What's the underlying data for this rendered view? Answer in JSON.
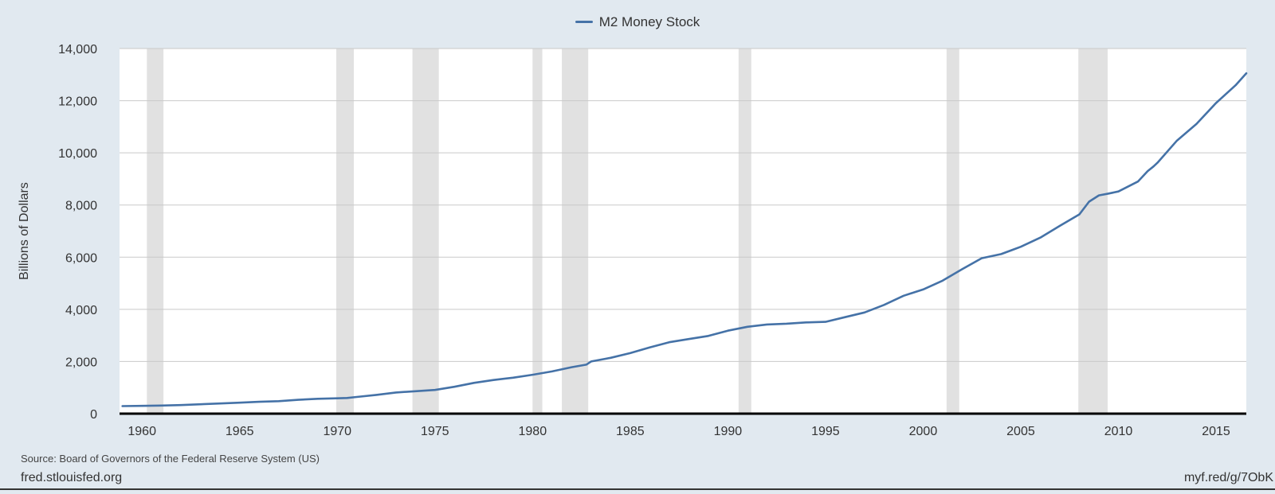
{
  "legend": {
    "label": "M2 Money Stock"
  },
  "footer": {
    "source": "Source: Board of Governors of the Federal Reserve System (US)",
    "site": "fred.stlouisfed.org",
    "shortlink": "myf.red/g/7ObK"
  },
  "colors": {
    "series": "#4572a7",
    "recession": "#e1e1e1",
    "grid": "#c9c9c9",
    "background": "#e1e9f0",
    "plot": "#ffffff"
  },
  "chart_data": {
    "type": "line",
    "title": "",
    "xlabel": "",
    "ylabel": "Billions of Dollars",
    "xlim": [
      1958.85,
      2016.55
    ],
    "ylim": [
      0,
      14000
    ],
    "y_ticks": [
      0,
      2000,
      4000,
      6000,
      8000,
      10000,
      12000,
      14000
    ],
    "y_tick_labels": [
      "0",
      "2,000",
      "4,000",
      "6,000",
      "8,000",
      "10,000",
      "12,000",
      "14,000"
    ],
    "x_ticks": [
      1960,
      1965,
      1970,
      1975,
      1980,
      1985,
      1990,
      1995,
      2000,
      2005,
      2010,
      2015
    ],
    "x_tick_labels": [
      "1960",
      "1965",
      "1970",
      "1975",
      "1980",
      "1985",
      "1990",
      "1995",
      "2000",
      "2005",
      "2010",
      "2015"
    ],
    "grid": true,
    "legend_position": "top-center",
    "recessions": [
      [
        1960.25,
        1961.1
      ],
      [
        1969.95,
        1970.85
      ],
      [
        1973.85,
        1975.2
      ],
      [
        1980.0,
        1980.5
      ],
      [
        1981.5,
        1982.85
      ],
      [
        1990.55,
        1991.2
      ],
      [
        2001.2,
        2001.85
      ],
      [
        2007.95,
        2009.45
      ]
    ],
    "series": [
      {
        "name": "M2 Money Stock",
        "x": [
          1959.0,
          1960.0,
          1961.0,
          1962.0,
          1963.0,
          1964.0,
          1965.0,
          1966.0,
          1967.0,
          1968.0,
          1969.0,
          1970.0,
          1970.5,
          1971.0,
          1972.0,
          1973.0,
          1974.0,
          1975.0,
          1976.0,
          1977.0,
          1978.0,
          1979.0,
          1980.0,
          1981.0,
          1982.0,
          1982.75,
          1983.0,
          1984.0,
          1985.0,
          1986.0,
          1987.0,
          1988.0,
          1989.0,
          1990.0,
          1991.0,
          1992.0,
          1993.0,
          1994.0,
          1995.0,
          1996.0,
          1997.0,
          1998.0,
          1999.0,
          2000.0,
          2001.0,
          2002.0,
          2003.0,
          2004.0,
          2005.0,
          2006.0,
          2007.0,
          2008.0,
          2008.5,
          2009.0,
          2009.5,
          2010.0,
          2011.0,
          2011.5,
          2011.8,
          2012.0,
          2013.0,
          2014.0,
          2015.0,
          2016.0,
          2016.55
        ],
        "values": [
          290,
          300,
          310,
          330,
          360,
          390,
          420,
          455,
          480,
          530,
          570,
          590,
          600,
          640,
          720,
          810,
          860,
          910,
          1030,
          1180,
          1290,
          1380,
          1490,
          1620,
          1780,
          1880,
          2000,
          2140,
          2320,
          2540,
          2740,
          2860,
          2980,
          3180,
          3330,
          3420,
          3450,
          3500,
          3520,
          3700,
          3880,
          4170,
          4520,
          4760,
          5100,
          5540,
          5960,
          6120,
          6400,
          6750,
          7200,
          7640,
          8130,
          8370,
          8440,
          8520,
          8900,
          9300,
          9480,
          9620,
          10470,
          11110,
          11910,
          12590,
          13050
        ]
      }
    ]
  }
}
